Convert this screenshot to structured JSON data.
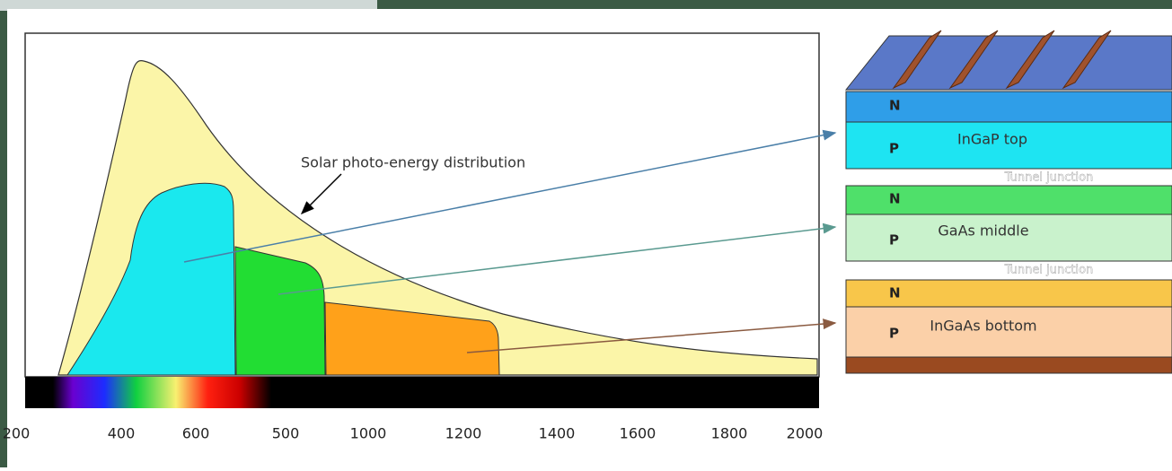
{
  "annotation": "Solar photo-energy distribution",
  "axis": {
    "labels": [
      "200",
      "400",
      "600",
      "500",
      "1000",
      "1200",
      "1400",
      "1600",
      "1800",
      "2000"
    ]
  },
  "layers": [
    {
      "n": "N",
      "p": "P",
      "name": "InGaP top"
    },
    {
      "n": "N",
      "p": "P",
      "name": "GaAs middle"
    },
    {
      "n": "N",
      "p": "P",
      "name": "InGaAs bottom"
    }
  ],
  "tunnel_labels": [
    "Tunnel junction",
    "Tunnel junction"
  ]
}
